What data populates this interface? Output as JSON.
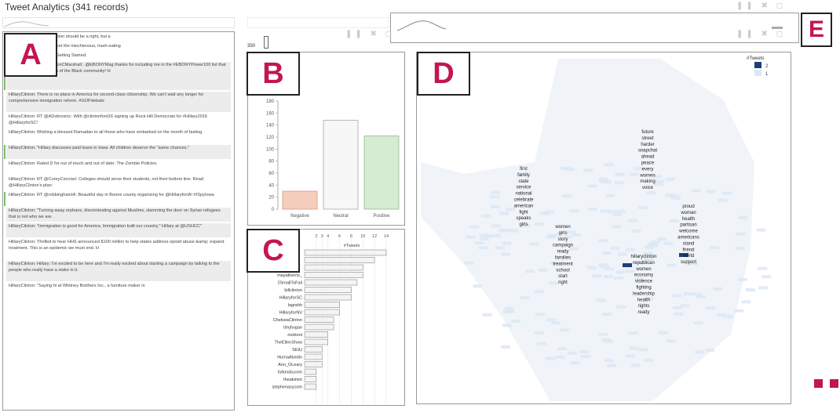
{
  "app": {
    "title": "Tweet Analytics (341 records)"
  },
  "colors": {
    "accent": "#c4164e",
    "negative": "#f5cdbd",
    "neutral": "#f7f7f7",
    "positive": "#d6ecd2",
    "heat_light": "#dbe7f5",
    "heat_dark": "#1d3e78"
  },
  "labels": {
    "a": "A",
    "b": "B",
    "c": "C",
    "d": "D",
    "e": "E"
  },
  "panelA": {
    "tweets": [
      {
        "text": "...access to higher education should be a right, but a",
        "shade": false,
        "bar": false
      },
      {
        "text": "...Hillary finally gets to meet the mischievous, trash-eating",
        "shade": false,
        "bar": false
      },
      {
        "text": "campaign launch video. Getting Started.",
        "shade": false,
        "bar": false
      },
      {
        "text": "HillaryClinton: RT @MarionCMarshall: .@EBONYMag thanks for including me in the #EBONYPower100 list that salutes the achievements of the Black community! H",
        "shade": true,
        "bar": true
      },
      {
        "text": "HillaryClinton: There is no place in America for second-class citizenship. We can't wait any longer for comprehensive immigration reform. #GOPdebate",
        "shade": true,
        "bar": false
      },
      {
        "text": "HillaryClinton: RT @ADobrosnic: With @clintonford16 signing up Rock Hill Democrats for #Hillary2016 @HillaryforSC!",
        "shade": false,
        "bar": false
      },
      {
        "text": "HillaryClinton: Wishing a blessed Ramadan to all those who have embarked on the month of fasting.",
        "shade": false,
        "bar": false
      },
      {
        "text": "HillaryClinton: \"Hillary discusses paid leave in Iowa: All children deserve the \"same chances.\"",
        "shade": true,
        "bar": true
      },
      {
        "text": "HillaryClinton: Rated D for out of touch and out of date: The Zombie Policies.",
        "shade": false,
        "bar": false
      },
      {
        "text": "HillaryClinton: RT @CoreyCiorciari: Colleges should serve their students, not their bottom line. Read @HillaryClinton's plan:",
        "shade": false,
        "bar": false
      },
      {
        "text": "HillaryClinton: RT @robbinghamIA: Beautiful day in Boone county organizing for @HillaryforIA! #ISpyIowa",
        "shade": false,
        "bar": true
      },
      {
        "text": "HillaryClinton: \"Turning away orphans, discriminating against Muslims, slamming the door on Syrian refugees that is not who we are.",
        "shade": true,
        "bar": false
      },
      {
        "text": "HillaryClinton: \"Immigration is good for America. Immigration built our country.\" Hillary at @USHCC\"",
        "shade": true,
        "bar": false
      },
      {
        "text": "HillaryClinton: Thrilled to hear HHS announced $100 million to help states address opioid abuse &amp; expand treatment. This is an epidemic we must end. H",
        "shade": false,
        "bar": false
      },
      {
        "text": "HillaryClinton: Hillary: I'm excited to be here and I'm really excited about starting a campaign by talking to the people who really have a stake in it.",
        "shade": true,
        "bar": false
      },
      {
        "text": "HillaryClinton: \"Saying hi at Whitney Brothers Inc., a furniture maker in",
        "shade": false,
        "bar": false
      }
    ]
  },
  "panelB": {
    "count_label": "350",
    "chart_data": {
      "type": "bar",
      "categories": [
        "Negative",
        "Neutral",
        "Positive"
      ],
      "values": [
        30,
        148,
        122
      ],
      "ylim": [
        0,
        180
      ],
      "yticks": [
        0,
        20,
        40,
        60,
        80,
        100,
        120,
        140,
        160,
        180
      ]
    }
  },
  "panelC": {
    "axis_title": "#Tweets",
    "chart_data": {
      "type": "bar",
      "orientation": "horizontal",
      "xticks": [
        "2",
        "3",
        "4",
        "6",
        "8",
        "10",
        "12",
        "14"
      ],
      "categories": [
        "",
        "",
        "",
        "mayatherris_",
        "2SmallToFail",
        "billclinton",
        "HillaryforSC",
        "lagrahh",
        "HillaryforNV",
        "ChelseaClinton",
        "timjhogan",
        "nicktoni",
        "TheEllenShow",
        "SEIU",
        "HumaAbedin",
        "Ann_OLeary",
        "fultondiucom",
        "theakimm",
        "stephenasycom"
      ],
      "values": [
        14,
        12,
        10,
        10,
        9,
        8,
        8,
        6,
        6,
        5,
        5,
        4,
        4,
        3,
        3,
        3,
        2,
        2,
        2
      ],
      "xlim": [
        0,
        14
      ]
    }
  },
  "panelD": {
    "legend_title": "#Tweets",
    "legend_items": [
      {
        "label": "2",
        "color": "#1d3e78"
      },
      {
        "label": "1",
        "color": "#dbe7f5"
      }
    ],
    "word_clusters": [
      {
        "words": [
          "future",
          "street",
          "harder",
          "snapchat",
          "ahead",
          "peace",
          "every",
          "women",
          "making",
          "voice"
        ]
      },
      {
        "words": [
          "first",
          "family",
          "state",
          "service",
          "national",
          "celebrate",
          "american",
          "fight",
          "speaks",
          "girls"
        ]
      },
      {
        "words": [
          "women",
          "girls",
          "story",
          "campaign",
          "ready",
          "families",
          "treatment",
          "school",
          "start",
          "right"
        ]
      },
      {
        "words": [
          "proud",
          "woman",
          "health",
          "partisan",
          "welcome",
          "americans",
          "stand",
          "friend",
          "world",
          "support"
        ]
      },
      {
        "words": [
          "hillaryclinton",
          "republican",
          "women",
          "economy",
          "violence",
          "fighting",
          "leadership",
          "health",
          "rights",
          "ready"
        ]
      }
    ]
  }
}
